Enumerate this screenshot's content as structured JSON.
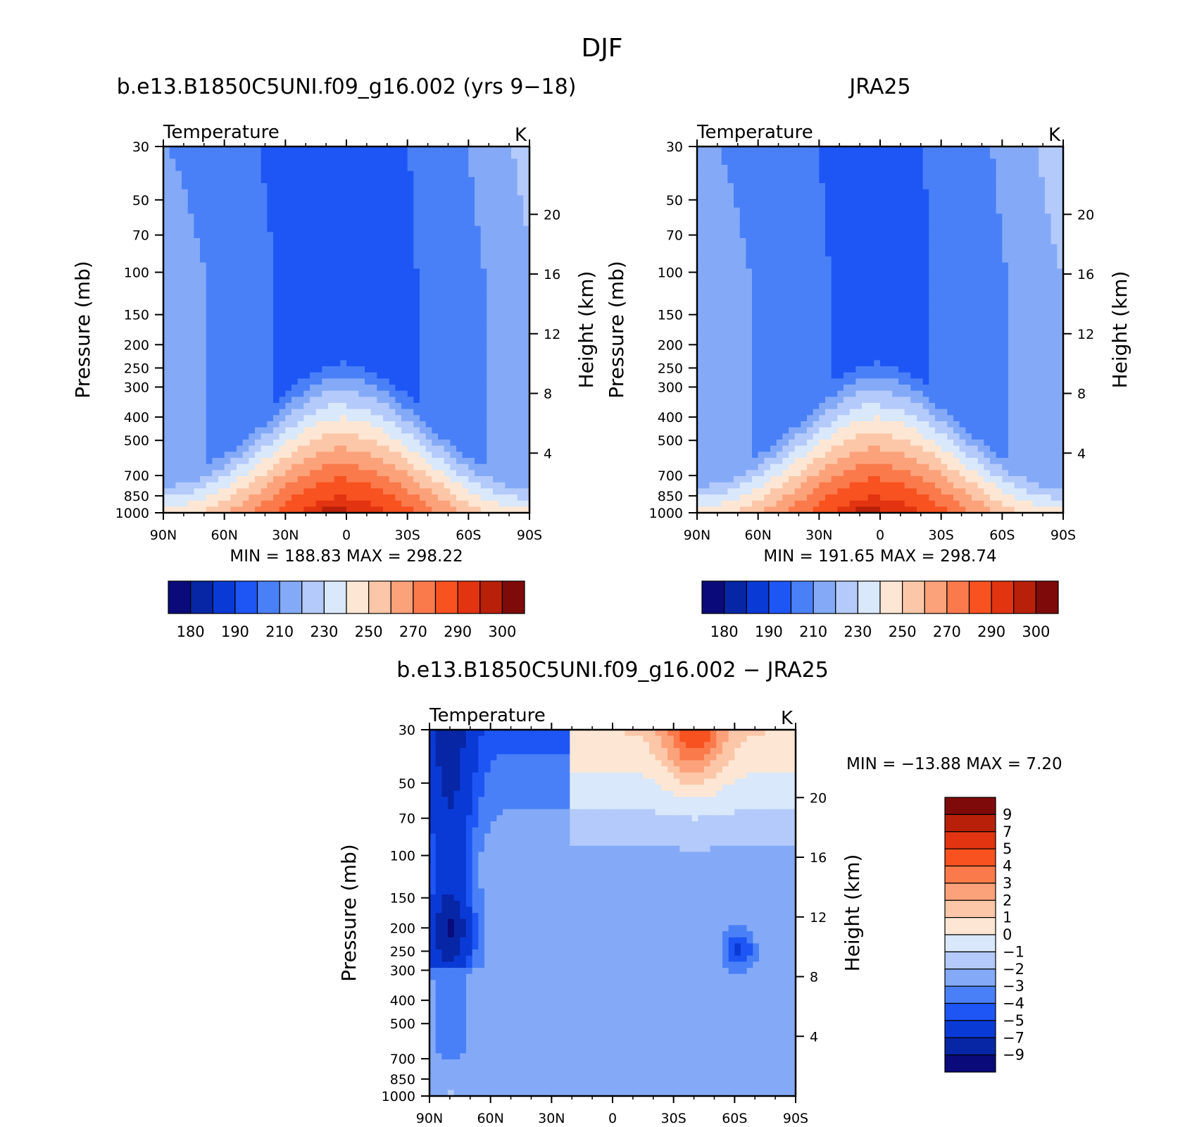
{
  "page_title": "DJF",
  "chart_data": [
    {
      "type": "heatmap",
      "title": "b.e13.B1850C5UNI.f09_g16.002 (yrs 9−18)",
      "left_label": "Temperature",
      "units": "K",
      "ylabel": "Pressure (mb)",
      "y2label": "Height (km)",
      "x_ticks": [
        "90N",
        "60N",
        "30N",
        "0",
        "30S",
        "60S",
        "90S"
      ],
      "x_values": [
        90,
        60,
        30,
        0,
        -30,
        -60,
        -90
      ],
      "y_ticks": [
        "30",
        "50",
        "70",
        "100",
        "150",
        "200",
        "250",
        "300",
        "400",
        "500",
        "700",
        "850",
        "1000"
      ],
      "y_values": [
        30,
        50,
        70,
        100,
        150,
        200,
        250,
        300,
        400,
        500,
        700,
        850,
        1000
      ],
      "y_scale": "log",
      "y_reversed": true,
      "y2_ticks": [
        "20",
        "16",
        "12",
        "8",
        "4"
      ],
      "y2_values": [
        20,
        16,
        12,
        8,
        4
      ],
      "min_label": "MIN =  188.83   MAX =  298.22",
      "min": 188.83,
      "max": 298.22,
      "colorbar": {
        "orientation": "horizontal",
        "levels": [
          180,
          185,
          190,
          200,
          210,
          220,
          230,
          240,
          250,
          260,
          270,
          280,
          290,
          295,
          300
        ],
        "labels": [
          "180",
          "190",
          "210",
          "230",
          "250",
          "270",
          "290",
          "300"
        ],
        "colors": [
          "#0a0a7a",
          "#0626a6",
          "#0a3ad6",
          "#1e56f5",
          "#4a80f7",
          "#84aaf7",
          "#b4cafa",
          "#d9e8fb",
          "#fde7d4",
          "#fcc7a8",
          "#fca27a",
          "#fa7a4c",
          "#f75220",
          "#e23410",
          "#b8200a",
          "#7f0a0a"
        ]
      }
    },
    {
      "type": "heatmap",
      "title": "JRA25",
      "left_label": "Temperature",
      "units": "K",
      "ylabel": "Pressure (mb)",
      "y2label": "Height (km)",
      "x_ticks": [
        "90N",
        "60N",
        "30N",
        "0",
        "30S",
        "60S",
        "90S"
      ],
      "x_values": [
        90,
        60,
        30,
        0,
        -30,
        -60,
        -90
      ],
      "y_ticks": [
        "30",
        "50",
        "70",
        "100",
        "150",
        "200",
        "250",
        "300",
        "400",
        "500",
        "700",
        "850",
        "1000"
      ],
      "y_values": [
        30,
        50,
        70,
        100,
        150,
        200,
        250,
        300,
        400,
        500,
        700,
        850,
        1000
      ],
      "y_scale": "log",
      "y_reversed": true,
      "y2_ticks": [
        "20",
        "16",
        "12",
        "8",
        "4"
      ],
      "y2_values": [
        20,
        16,
        12,
        8,
        4
      ],
      "min_label": "MIN =  191.65   MAX =  298.74",
      "min": 191.65,
      "max": 298.74,
      "colorbar": {
        "orientation": "horizontal",
        "levels": [
          180,
          185,
          190,
          200,
          210,
          220,
          230,
          240,
          250,
          260,
          270,
          280,
          290,
          295,
          300
        ],
        "labels": [
          "180",
          "190",
          "210",
          "230",
          "250",
          "270",
          "290",
          "300"
        ],
        "colors": [
          "#0a0a7a",
          "#0626a6",
          "#0a3ad6",
          "#1e56f5",
          "#4a80f7",
          "#84aaf7",
          "#b4cafa",
          "#d9e8fb",
          "#fde7d4",
          "#fcc7a8",
          "#fca27a",
          "#fa7a4c",
          "#f75220",
          "#e23410",
          "#b8200a",
          "#7f0a0a"
        ]
      }
    },
    {
      "type": "heatmap",
      "title": "b.e13.B1850C5UNI.f09_g16.002 − JRA25",
      "left_label": "Temperature",
      "units": "K",
      "ylabel": "Pressure (mb)",
      "y2label": "Height (km)",
      "x_ticks": [
        "90N",
        "60N",
        "30N",
        "0",
        "30S",
        "60S",
        "90S"
      ],
      "x_values": [
        90,
        60,
        30,
        0,
        -30,
        -60,
        -90
      ],
      "y_ticks": [
        "30",
        "50",
        "70",
        "100",
        "150",
        "200",
        "250",
        "300",
        "400",
        "500",
        "700",
        "850",
        "1000"
      ],
      "y_values": [
        30,
        50,
        70,
        100,
        150,
        200,
        250,
        300,
        400,
        500,
        700,
        850,
        1000
      ],
      "y_scale": "log",
      "y_reversed": true,
      "y2_ticks": [
        "20",
        "16",
        "12",
        "8",
        "4"
      ],
      "y2_values": [
        20,
        16,
        12,
        8,
        4
      ],
      "min_label": "MIN = −13.88   MAX =    7.20",
      "min": -13.88,
      "max": 7.2,
      "colorbar": {
        "orientation": "vertical",
        "levels": [
          -9,
          -7,
          -5,
          -4,
          -3,
          -2,
          -1,
          0,
          1,
          2,
          3,
          4,
          5,
          7,
          9
        ],
        "labels": [
          "9",
          "7",
          "5",
          "4",
          "3",
          "2",
          "1",
          "0",
          "−1",
          "−2",
          "−3",
          "−4",
          "−5",
          "−7",
          "−9"
        ],
        "colors": [
          "#0a0a7a",
          "#0626a6",
          "#0a3ad6",
          "#1e56f5",
          "#4a80f7",
          "#84aaf7",
          "#b4cafa",
          "#d9e8fb",
          "#fde7d4",
          "#fcc7a8",
          "#fca27a",
          "#fa7a4c",
          "#f75220",
          "#e23410",
          "#b8200a",
          "#7f0a0a"
        ]
      }
    }
  ]
}
